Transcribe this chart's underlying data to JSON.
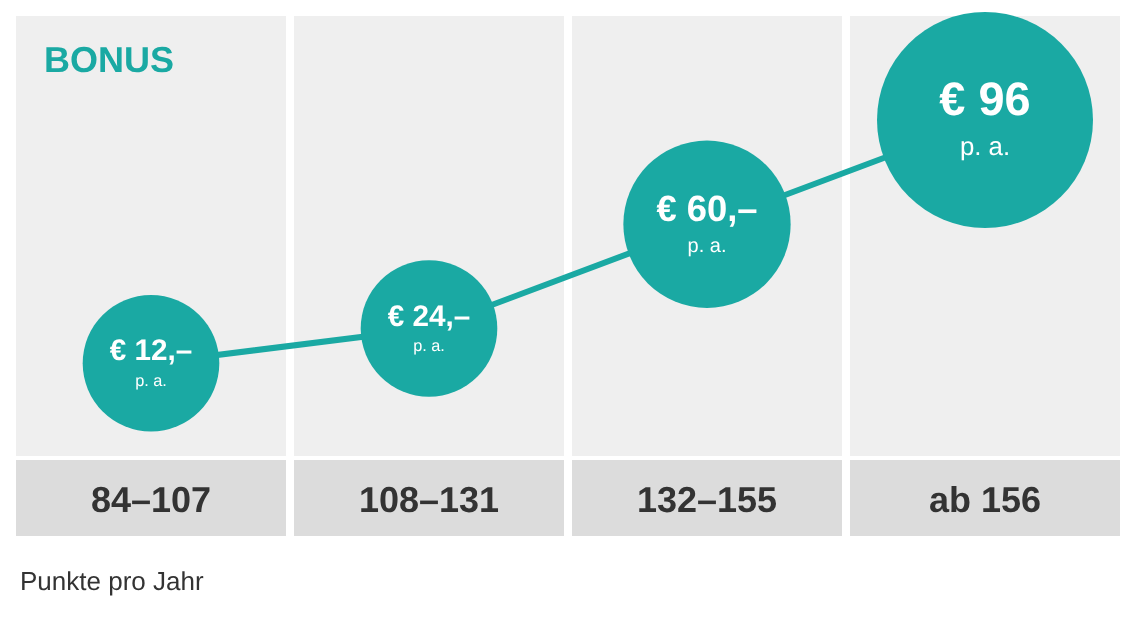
{
  "chart_data": {
    "type": "bubble",
    "title": "BONUS",
    "xlabel": "Punkte pro Jahr",
    "categories": [
      "84–107",
      "108–131",
      "132–155",
      "ab 156"
    ],
    "series": [
      {
        "color": "#1aa9a3",
        "values": [
          12,
          24,
          60,
          96
        ],
        "sizes": [
          0.4,
          0.4,
          0.6,
          1
        ],
        "value_labels": [
          "€ 12,–\np. a.",
          "€ 24,–\np. a.",
          "€ 60,–\np. a.",
          "€ 96\np. a."
        ]
      }
    ]
  }
}
